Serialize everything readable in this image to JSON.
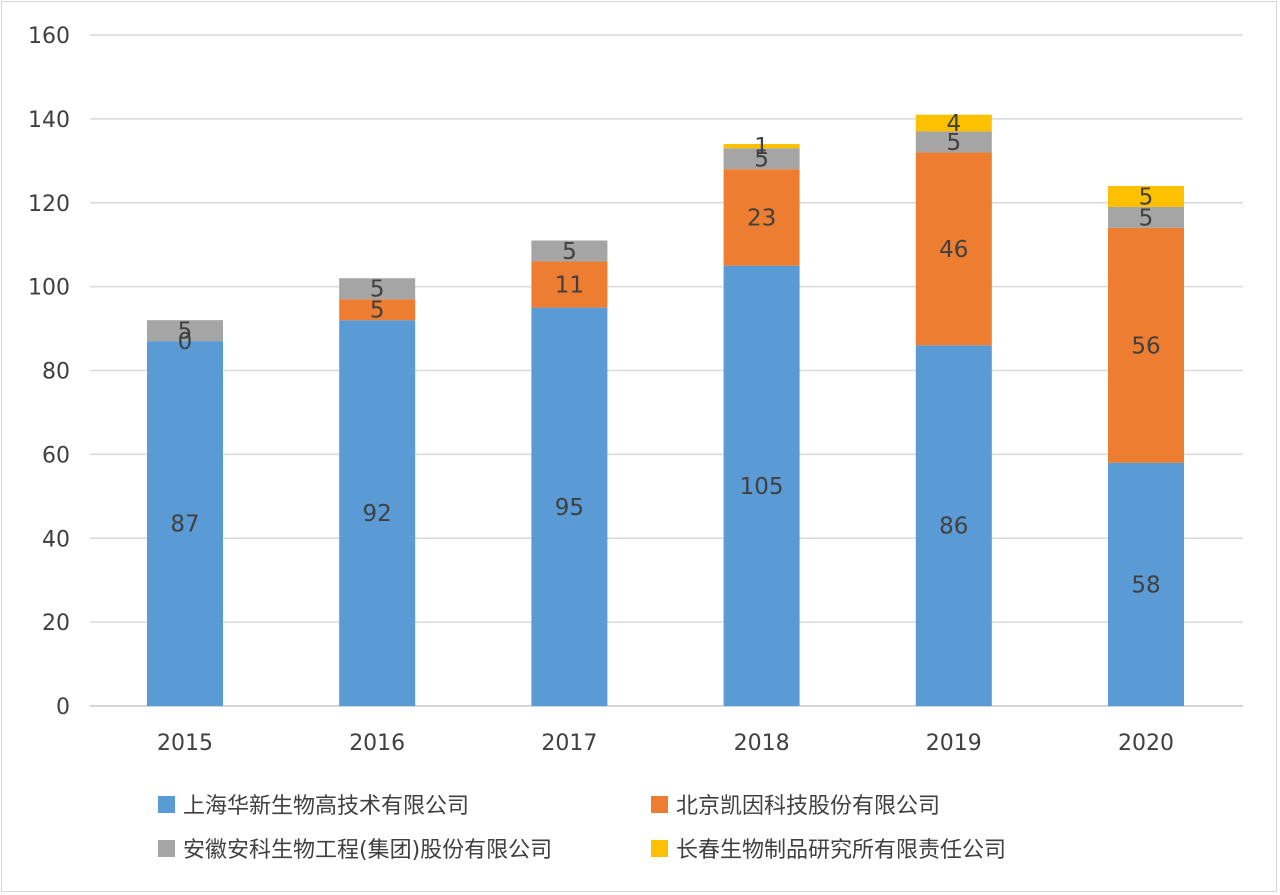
{
  "chart_data": {
    "type": "bar",
    "stacked": true,
    "title": "",
    "xlabel": "",
    "ylabel": "",
    "ylim": [
      0,
      160
    ],
    "yticks": [
      0,
      20,
      40,
      60,
      80,
      100,
      120,
      140,
      160
    ],
    "grid": true,
    "legend_position": "bottom",
    "categories": [
      "2015",
      "2016",
      "2017",
      "2018",
      "2019",
      "2020"
    ],
    "series": [
      {
        "name": "上海华新生物高技术有限公司",
        "color": "#5B9BD5",
        "values": [
          87,
          92,
          95,
          105,
          86,
          58
        ]
      },
      {
        "name": "北京凯因科技股份有限公司",
        "color": "#ED7D31",
        "values": [
          0,
          5,
          11,
          23,
          46,
          56
        ]
      },
      {
        "name": "安徽安科生物工程(集团)股份有限公司",
        "color": "#A5A5A5",
        "values": [
          5,
          5,
          5,
          5,
          5,
          5
        ]
      },
      {
        "name": "长春生物制品研究所有限责任公司",
        "color": "#FFC000",
        "values": [
          0,
          0,
          0,
          1,
          4,
          5
        ]
      }
    ]
  }
}
